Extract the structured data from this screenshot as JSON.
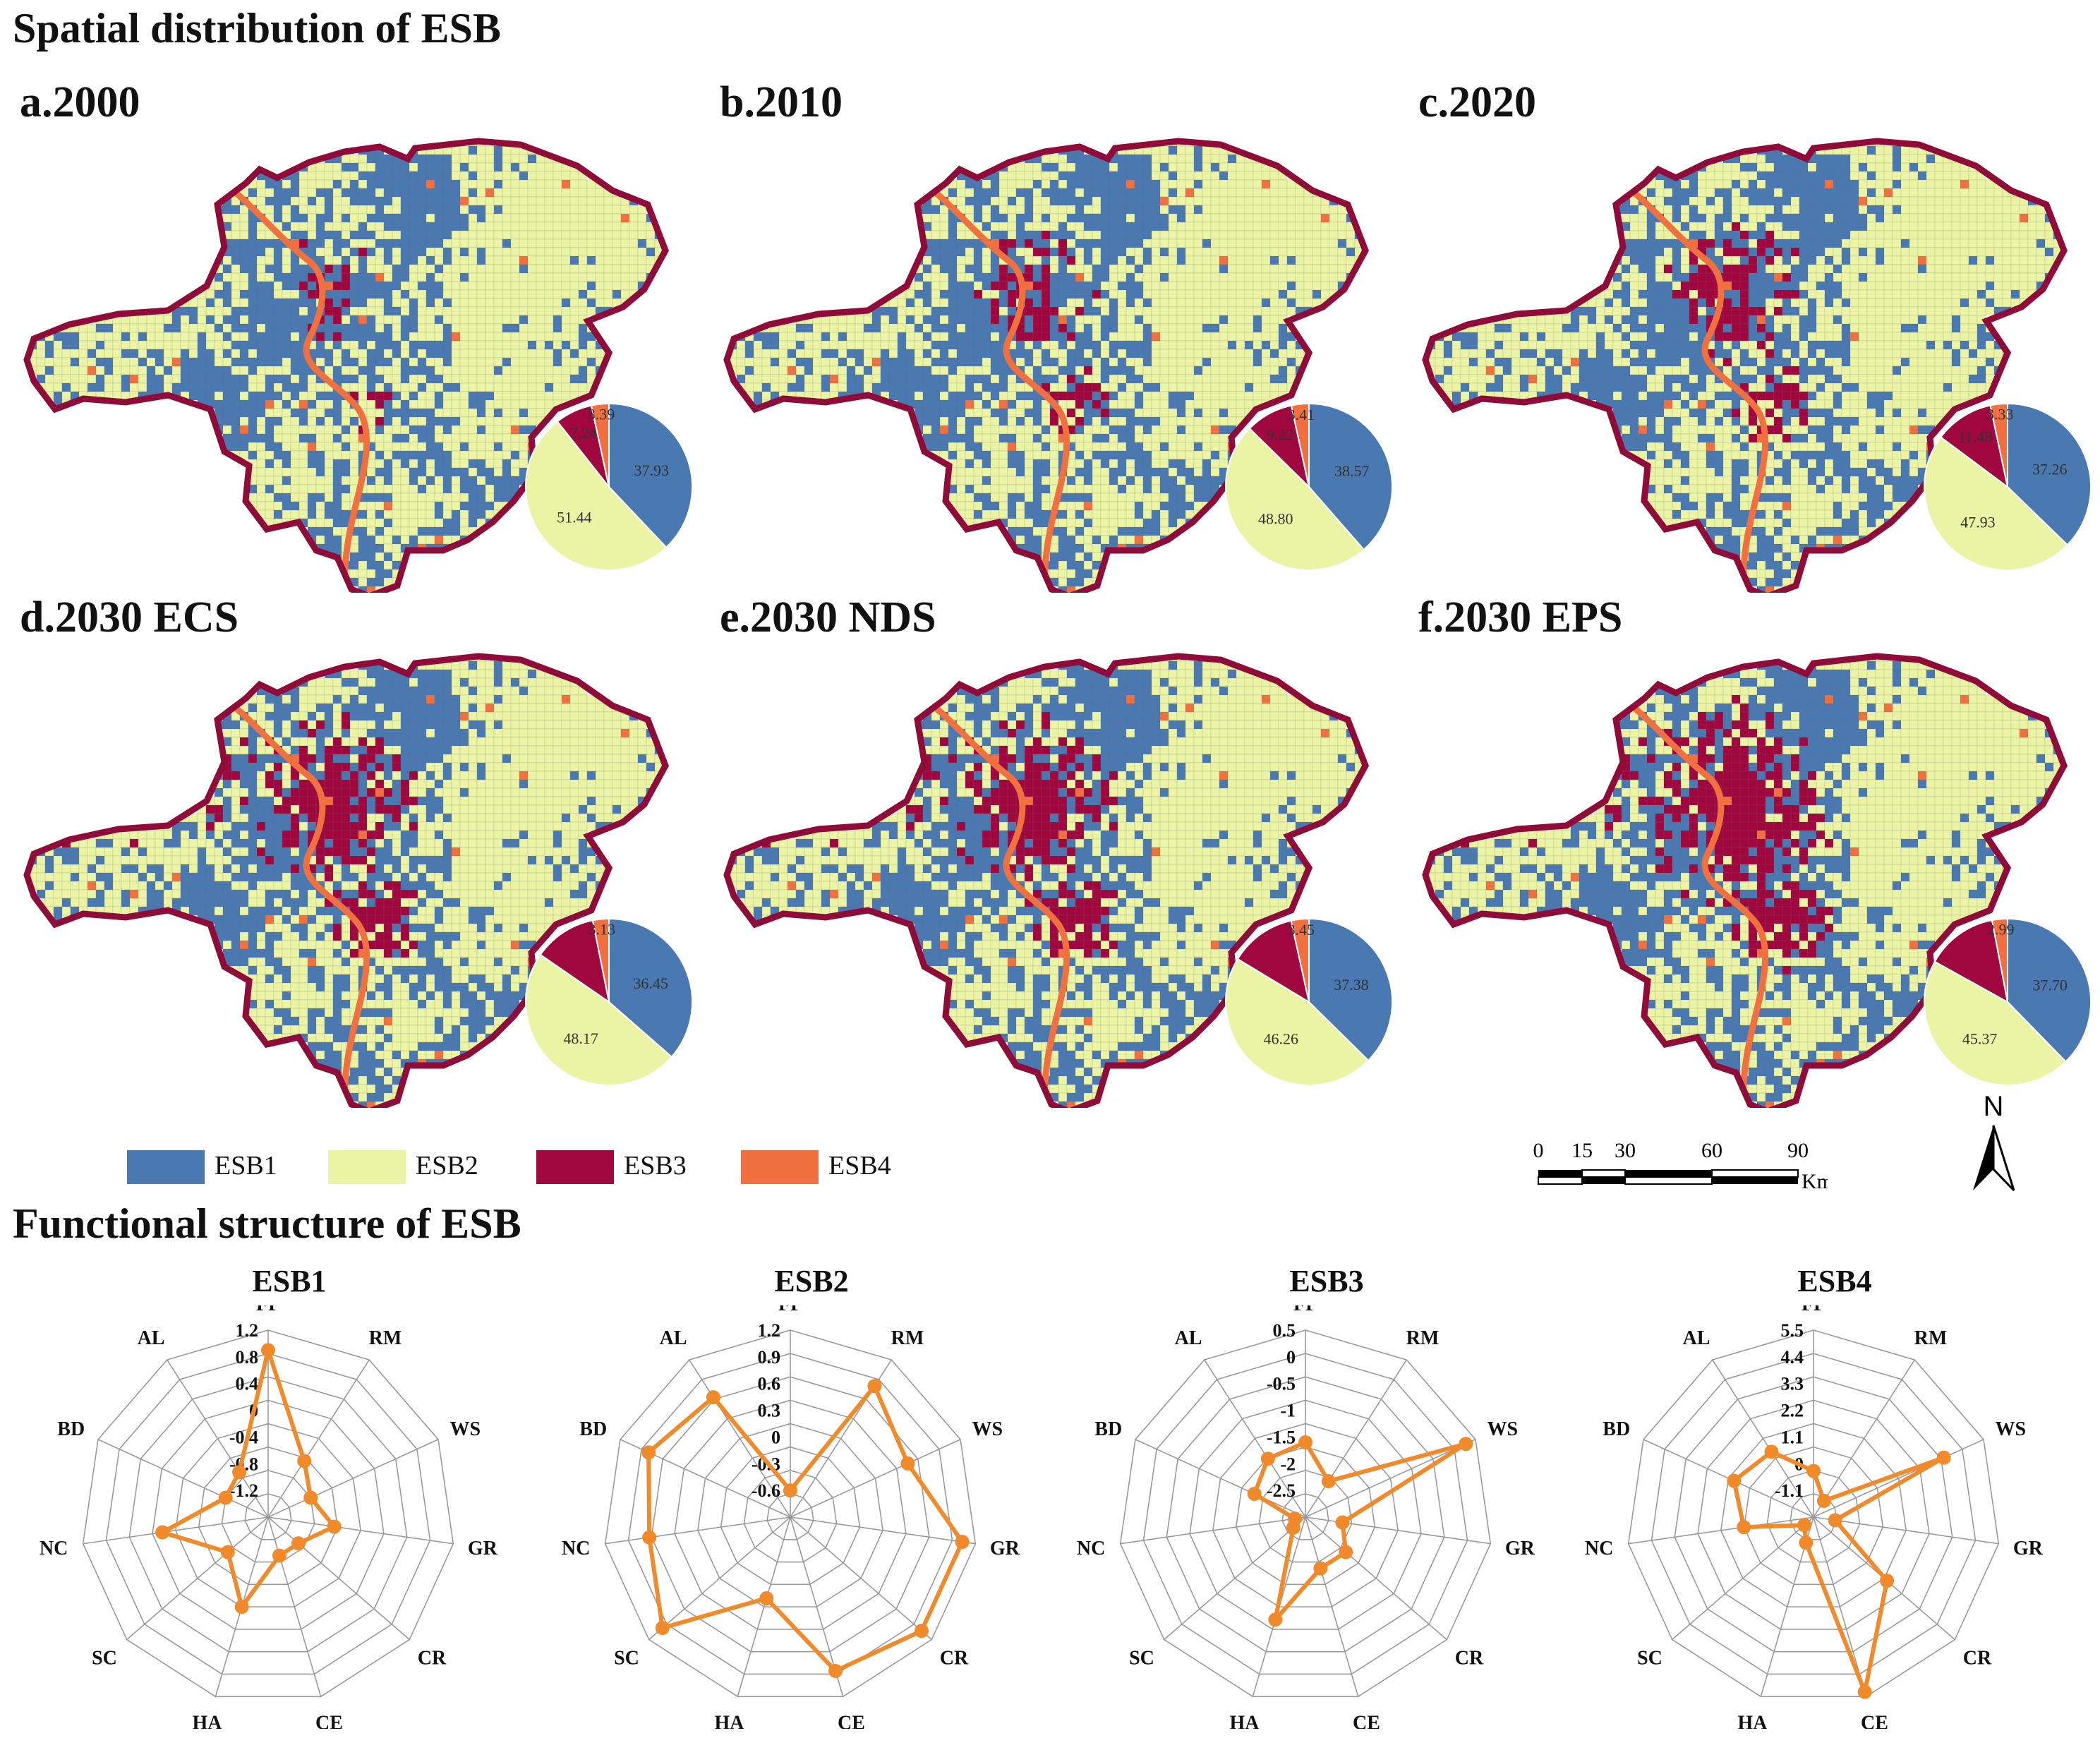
{
  "titles": {
    "spatial": "Spatial distribution of ESB",
    "functional": "Functional structure of ESB"
  },
  "colors": {
    "ESB1": "#4a78b0",
    "ESB2": "#ebf4a4",
    "ESB3": "#a1073f",
    "ESB4": "#f07040",
    "border": "#8e0b3a",
    "radar_line": "#f08a2a",
    "grid": "#9a9a9a"
  },
  "maps": [
    {
      "label": "a.2000"
    },
    {
      "label": "b.2010"
    },
    {
      "label": "c.2020"
    },
    {
      "label": "d.2030 ECS"
    },
    {
      "label": "e.2030 NDS"
    },
    {
      "label": "f.2030 EPS"
    }
  ],
  "legend": [
    {
      "label": "ESB1"
    },
    {
      "label": "ESB2"
    },
    {
      "label": "ESB3"
    },
    {
      "label": "ESB4"
    }
  ],
  "scalebar": {
    "ticks": [
      "0",
      "15",
      "30",
      "60",
      "90"
    ],
    "unit": "Km"
  },
  "north_label": "N",
  "chart_data": [
    {
      "type": "pie",
      "title": "a.2000",
      "categories": [
        "ESB1",
        "ESB2",
        "ESB3",
        "ESB4"
      ],
      "values": [
        37.93,
        51.44,
        7.24,
        3.39
      ],
      "labels": [
        "37.93",
        "51.44",
        "7.24",
        "3.39"
      ]
    },
    {
      "type": "pie",
      "title": "b.2010",
      "categories": [
        "ESB1",
        "ESB2",
        "ESB3",
        "ESB4"
      ],
      "values": [
        38.57,
        48.8,
        9.22,
        3.41
      ],
      "labels": [
        "38.57",
        "48.80",
        "9.22",
        "3.41"
      ]
    },
    {
      "type": "pie",
      "title": "c.2020",
      "categories": [
        "ESB1",
        "ESB2",
        "ESB3",
        "ESB4"
      ],
      "values": [
        37.26,
        47.93,
        11.48,
        3.33
      ],
      "labels": [
        "37.26",
        "47.93",
        "11.48",
        "3.33"
      ]
    },
    {
      "type": "pie",
      "title": "d.2030 ECS",
      "categories": [
        "ESB1",
        "ESB2",
        "ESB3",
        "ESB4"
      ],
      "values": [
        36.45,
        48.17,
        12.25,
        3.13
      ],
      "labels": [
        "36.45",
        "48.17",
        "",
        "3.13"
      ]
    },
    {
      "type": "pie",
      "title": "e.2030 NDS",
      "categories": [
        "ESB1",
        "ESB2",
        "ESB3",
        "ESB4"
      ],
      "values": [
        37.38,
        46.26,
        12.91,
        3.45
      ],
      "labels": [
        "37.38",
        "46.26",
        "",
        "3.45"
      ]
    },
    {
      "type": "pie",
      "title": "f.2030 EPS",
      "categories": [
        "ESB1",
        "ESB2",
        "ESB3",
        "ESB4"
      ],
      "values": [
        37.7,
        45.37,
        13.94,
        2.99
      ],
      "labels": [
        "37.70",
        "45.37",
        "",
        "2.99"
      ]
    },
    {
      "type": "radar",
      "title": "ESB1",
      "axes": [
        "FP",
        "RM",
        "WS",
        "GR",
        "CR",
        "CE",
        "HA",
        "SC",
        "NC",
        "BD",
        "AL"
      ],
      "ticks": [
        1.2,
        0.8,
        0.4,
        0,
        -0.4,
        -0.8,
        -1.2
      ],
      "tick_labels": [
        "1.2",
        "0.8",
        "0.4",
        "0",
        "-0.4",
        "-0.8",
        "-1.2"
      ],
      "range": [
        -1.6,
        1.2
      ],
      "values": [
        0.9,
        -0.6,
        -0.9,
        -0.6,
        -1.0,
        -1.0,
        -0.2,
        -0.8,
        0.0,
        -0.9,
        -0.8
      ]
    },
    {
      "type": "radar",
      "title": "ESB2",
      "axes": [
        "FP",
        "RM",
        "WS",
        "GR",
        "CR",
        "CE",
        "HA",
        "SC",
        "NC",
        "BD",
        "AL"
      ],
      "ticks": [
        1.2,
        0.9,
        0.6,
        0.3,
        0,
        -0.3,
        -0.6
      ],
      "tick_labels": [
        "1.2",
        "0.9",
        "0.6",
        "0.3",
        "0",
        "-0.3",
        "-0.6"
      ],
      "range": [
        -0.9,
        1.2
      ],
      "values": [
        -0.6,
        0.85,
        0.55,
        1.05,
        1.05,
        0.9,
        0.05,
        1.0,
        0.7,
        0.85,
        0.7
      ]
    },
    {
      "type": "radar",
      "title": "ESB3",
      "axes": [
        "FP",
        "RM",
        "WS",
        "GR",
        "CR",
        "CE",
        "HA",
        "SC",
        "NC",
        "BD",
        "AL"
      ],
      "ticks": [
        0.5,
        0,
        -0.5,
        -1,
        -1.5,
        -2,
        -2.5
      ],
      "tick_labels": [
        "0.5",
        "0",
        "-0.5",
        "-1",
        "-1.5",
        "-2",
        "-2.5"
      ],
      "range": [
        -3.0,
        0.5
      ],
      "values": [
        -1.6,
        -2.2,
        0.3,
        -2.3,
        -2.0,
        -2.0,
        -1.0,
        -2.7,
        -2.8,
        -1.95,
        -1.7
      ]
    },
    {
      "type": "radar",
      "title": "ESB4",
      "axes": [
        "FP",
        "RM",
        "WS",
        "GR",
        "CR",
        "CE",
        "HA",
        "SC",
        "NC",
        "BD",
        "AL"
      ],
      "ticks": [
        5.5,
        4.4,
        3.3,
        2.2,
        1.1,
        0,
        -1.1
      ],
      "tick_labels": [
        "5.5",
        "4.4",
        "3.3",
        "2.2",
        "1.1",
        "0",
        "-1.1"
      ],
      "range": [
        -2.2,
        5.5
      ],
      "values": [
        -0.3,
        -1.4,
        3.7,
        -1.3,
        1.8,
        5.3,
        -1.1,
        -1.7,
        0.7,
        1.4,
        1.0
      ]
    }
  ]
}
